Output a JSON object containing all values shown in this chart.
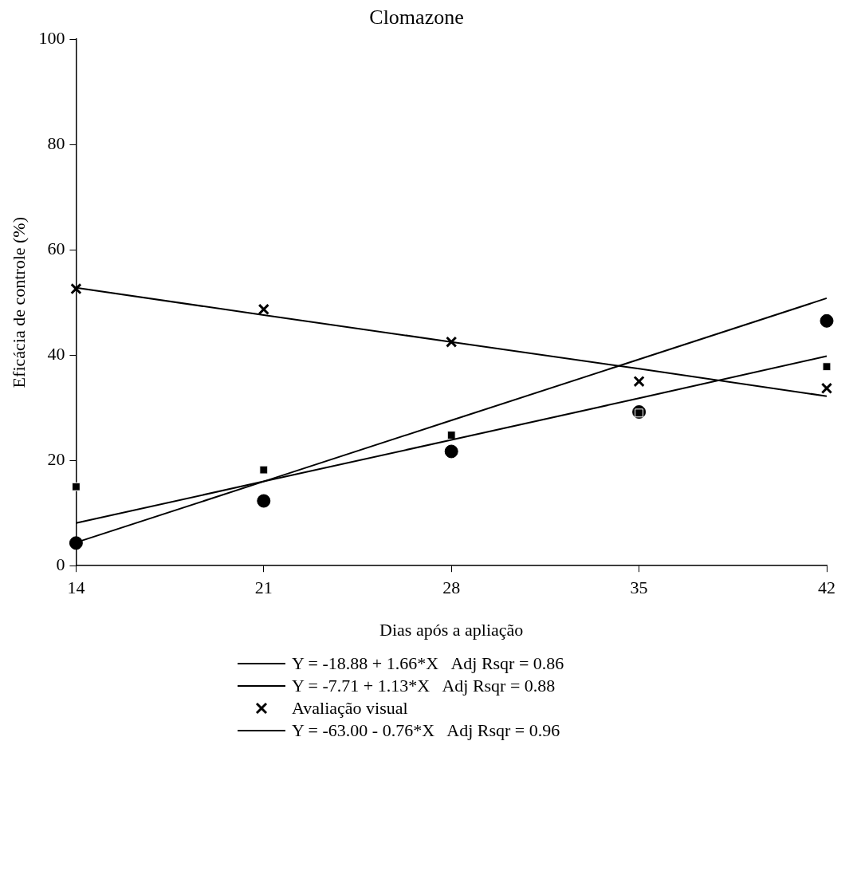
{
  "chart_data": {
    "type": "scatter",
    "title": "Clomazone",
    "xlabel": "Dias após a apliação",
    "ylabel": "Eficácia de controle (%)",
    "x": [
      14,
      21,
      28,
      35,
      42
    ],
    "xlim": [
      14,
      42
    ],
    "xticks": [
      14,
      21,
      28,
      35,
      42
    ],
    "ylim": [
      0,
      100
    ],
    "yticks": [
      0,
      20,
      40,
      60,
      80,
      100
    ],
    "grid": false,
    "legend": "bottom",
    "series": [
      {
        "marker": "circle",
        "color": "#000000",
        "values": [
          4.3,
          12.3,
          21.7,
          29.2,
          46.5
        ]
      },
      {
        "type": "line",
        "marker": "none",
        "name": "Y = -18.88 + 1.66*X   Adj Rsqr = 0.86",
        "color": "#000000",
        "values": [
          4.4,
          16.0,
          27.6,
          39.2,
          50.8
        ]
      },
      {
        "marker": "square",
        "color": "#000000",
        "values": [
          15.0,
          18.2,
          24.8,
          29.0,
          37.8
        ]
      },
      {
        "type": "line",
        "marker": "none",
        "name": "Y = -7.71 + 1.13*X   Adj Rsqr = 0.88",
        "color": "#000000",
        "values": [
          8.1,
          16.0,
          23.9,
          31.8,
          39.8
        ]
      },
      {
        "marker": "cross",
        "name": "Avaliação visual",
        "color": "#000000",
        "values": [
          52.6,
          48.7,
          42.5,
          35.0,
          33.7
        ]
      },
      {
        "type": "line",
        "marker": "none",
        "name": "Y = -63.00 - 0.76*X   Adj Rsqr = 0.96",
        "color": "#000000",
        "values": [
          52.8,
          47.6,
          42.5,
          37.4,
          32.2
        ]
      }
    ]
  }
}
